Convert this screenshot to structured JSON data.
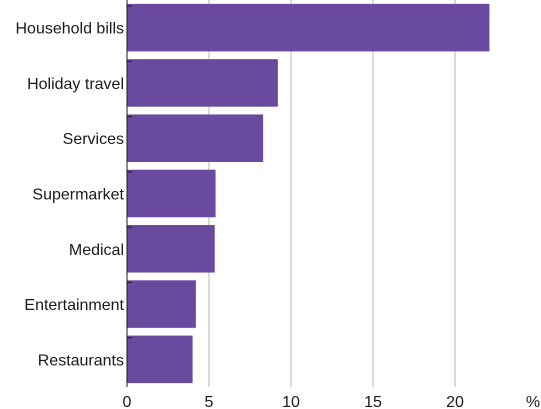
{
  "chart_data": {
    "type": "bar",
    "orientation": "horizontal",
    "categories": [
      "Household bills",
      "Holiday travel",
      "Services",
      "Supermarket",
      "Medical",
      "Entertainment",
      "Restaurants"
    ],
    "values": [
      22.1,
      9.2,
      8.3,
      5.4,
      5.35,
      4.2,
      4.0
    ],
    "xlim": [
      0,
      25
    ],
    "xticks": [
      0,
      5,
      10,
      15,
      20
    ],
    "unit_label": "%",
    "bar_color": "#6a4a9e",
    "grid": "vertical"
  }
}
